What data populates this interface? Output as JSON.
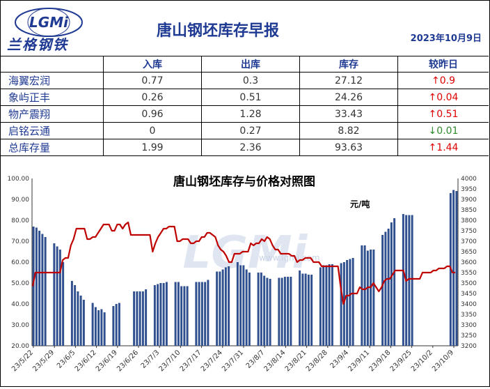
{
  "header": {
    "logo_text": "LGMi",
    "company": "兰格钢铁",
    "title": "唐山钢坯库存早报",
    "date": "2023年10月9日"
  },
  "table": {
    "columns": [
      "入库",
      "出库",
      "库存",
      "较昨日"
    ],
    "rows": [
      {
        "name": "海翼宏润",
        "in": "0.77",
        "out": "0.3",
        "stock": "27.12",
        "arrow": "↑",
        "change": "0.9",
        "dir": "up"
      },
      {
        "name": "象屿正丰",
        "in": "0.26",
        "out": "0.51",
        "stock": "24.26",
        "arrow": "↑",
        "change": "0.04",
        "dir": "up"
      },
      {
        "name": "物产震翔",
        "in": "0.96",
        "out": "1.28",
        "stock": "33.43",
        "arrow": "↑",
        "change": "0.51",
        "dir": "up"
      },
      {
        "name": "启铭云通",
        "in": "0",
        "out": "0.27",
        "stock": "8.82",
        "arrow": "↓",
        "change": "0.01",
        "dir": "down"
      },
      {
        "name": "总库存量",
        "in": "1.99",
        "out": "2.36",
        "stock": "93.63",
        "arrow": "↑",
        "change": "1.44",
        "dir": "up"
      }
    ]
  },
  "colors": {
    "bar": "#2f4f8f",
    "line": "#c00000",
    "title_blue": "#1f3a93",
    "up": "#e00000",
    "down": "#2e8b2e"
  },
  "chart_data": {
    "type": "bar",
    "title": "唐山钢坯库存与价格对照图",
    "unit_label": "元/吨",
    "watermark": "LGMi",
    "watermark_url": "www.lgmi.com",
    "y_left_range": [
      20,
      100
    ],
    "y_left_ticks": [
      "20.00",
      "30.00",
      "40.00",
      "50.00",
      "60.00",
      "70.00",
      "80.00",
      "90.00",
      "100.00"
    ],
    "y_right_range": [
      3200,
      4000
    ],
    "y_right_ticks": [
      "3200",
      "3250",
      "3300",
      "3350",
      "3400",
      "3450",
      "3500",
      "3550",
      "3600",
      "3650",
      "3700",
      "3750",
      "3800",
      "3850",
      "3900",
      "3950",
      "4000"
    ],
    "x_tick_labels": [
      "23/5/22",
      "23/5/29",
      "23/6/5",
      "23/6/12",
      "23/6/19",
      "23/6/26",
      "23/7/3",
      "23/7/10",
      "23/7/17",
      "23/7/24",
      "23/7/31",
      "23/8/7",
      "23/8/14",
      "23/8/21",
      "23/8/28",
      "23/9/4",
      "23/9/11",
      "23/9/18",
      "23/9/25",
      "23/10/2",
      "23/10/9"
    ],
    "series": [
      {
        "type": "bar",
        "values": [
          77,
          76.5,
          75,
          73.5,
          72,
          null,
          null,
          69,
          67.5,
          66,
          60,
          null,
          null,
          51,
          49,
          46,
          44,
          42,
          null,
          null,
          40.5,
          38.5,
          37,
          37.5,
          36,
          null,
          null,
          39,
          40,
          40.5,
          null,
          null,
          null,
          null,
          46,
          46,
          46,
          46,
          47,
          null,
          null,
          49,
          49.5,
          50,
          50,
          50.5,
          null,
          null,
          50.5,
          50.5,
          48.5,
          48.5,
          48.5,
          null,
          null,
          50.5,
          50.5,
          50.5,
          50.5,
          51.5,
          null,
          null,
          55.5,
          55.5,
          56.5,
          57.5,
          58,
          null,
          null,
          60,
          58.5,
          58.5,
          56.5,
          55,
          null,
          null,
          55,
          55,
          53.5,
          52.5,
          52,
          null,
          null,
          52.5,
          52.5,
          53,
          53,
          53,
          null,
          null,
          56,
          54.5,
          54.5,
          54,
          54,
          null,
          null,
          57.5,
          58.5,
          58.5,
          59,
          59,
          null,
          null,
          59.5,
          60,
          61,
          61.5,
          62,
          null,
          null,
          68,
          68,
          65.5,
          66,
          66,
          null,
          null,
          73,
          74.5,
          76,
          79,
          81,
          null,
          null,
          83,
          82.5,
          82.5,
          82.5,
          null,
          null,
          null,
          null,
          null,
          null,
          null,
          null,
          null,
          null,
          null,
          null,
          93,
          94.5,
          94
        ]
      },
      {
        "type": "line",
        "values": [
          3485,
          3550,
          3550,
          3550,
          3550,
          3550,
          3550,
          3550,
          3550,
          3550,
          3550,
          3610,
          3620,
          3620,
          3680,
          3710,
          3760,
          3760,
          3760,
          3760,
          3710,
          3710,
          3720,
          3720,
          3740,
          3760,
          3780,
          3780,
          3780,
          3750,
          3750,
          3780,
          3780,
          3760,
          3780,
          3790,
          3730,
          3730,
          3730,
          3730,
          3730,
          3730,
          3730,
          3730,
          3650,
          3690,
          3720,
          3740,
          3760,
          3760,
          3770,
          3770,
          3770,
          3700,
          3700,
          3710,
          3710,
          3710,
          3690,
          3690,
          3700,
          3700,
          3720,
          3720,
          3740,
          3740,
          3730,
          3720,
          3680,
          3660,
          3650,
          3630,
          3600,
          3600,
          3640,
          3640,
          3640,
          3650,
          3650,
          3650,
          3690,
          3680,
          3690,
          3690,
          3710,
          3700,
          3720,
          3710,
          3680,
          3660,
          3660,
          3640,
          3640,
          3640,
          3640,
          3630,
          3630,
          3600,
          3610,
          3610,
          3620,
          3620,
          3620,
          3600,
          3600,
          3600,
          3580,
          3580,
          3580,
          3580,
          3580,
          3580,
          3580,
          3480,
          3400,
          3440,
          3440,
          3450,
          3450,
          3450,
          3480,
          3470,
          3470,
          3480,
          3480,
          3500,
          3480,
          3460,
          3480,
          3510,
          3520,
          3520,
          3540,
          3560,
          3560,
          3560,
          3560,
          3510,
          3520,
          3520,
          3520,
          3520,
          3520,
          3550,
          3550,
          3550,
          3550,
          3560,
          3560,
          3570,
          3570,
          3570,
          3580,
          3580,
          3550,
          3550
        ]
      }
    ]
  }
}
